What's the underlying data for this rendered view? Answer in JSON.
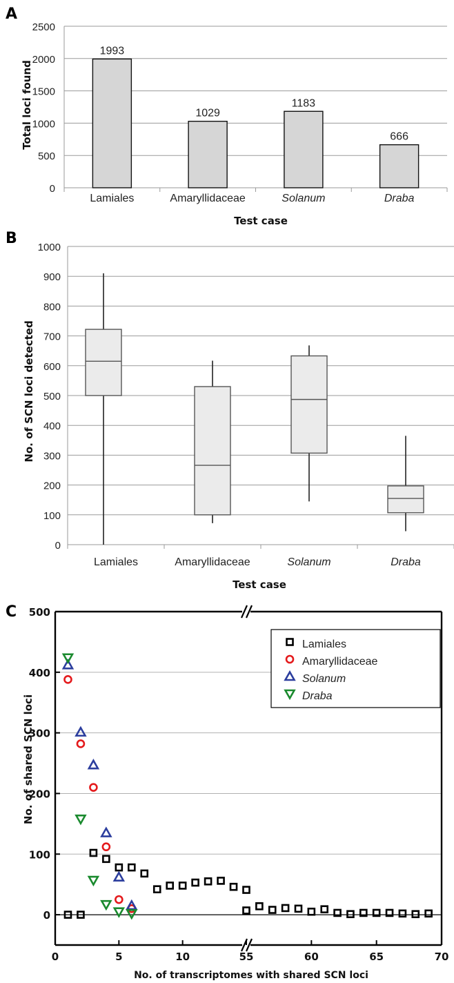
{
  "panels": {
    "a": "A",
    "b": "B",
    "c": "C"
  },
  "chart_data": [
    {
      "type": "bar",
      "ylabel": "Total loci found",
      "xlabel": "Test case",
      "categories": [
        "Lamiales",
        "Amaryllidaceae",
        "Solanum",
        "Draba"
      ],
      "italic_categories": [
        "Solanum",
        "Draba"
      ],
      "values": [
        1993,
        1029,
        1183,
        666
      ],
      "data_labels": [
        "1993",
        "1029",
        "1183",
        "666"
      ],
      "ylim": [
        0,
        2500
      ],
      "yticks": [
        "0",
        "500",
        "1000",
        "1500",
        "2000",
        "2500"
      ],
      "grid": true,
      "bar_color": "#d6d6d6"
    },
    {
      "type": "box",
      "ylabel": "No. of SCN loci detected",
      "xlabel": "Test case",
      "categories": [
        "Lamiales",
        "Amaryllidaceae",
        "Solanum",
        "Draba"
      ],
      "italic_categories": [
        "Solanum",
        "Draba"
      ],
      "boxes": [
        {
          "min": 0,
          "q1": 500,
          "median": 615,
          "q3": 722,
          "max": 910
        },
        {
          "min": 72,
          "q1": 100,
          "median": 266,
          "q3": 530,
          "max": 617
        },
        {
          "min": 145,
          "q1": 307,
          "median": 487,
          "q3": 633,
          "max": 668
        },
        {
          "min": 45,
          "q1": 107,
          "median": 155,
          "q3": 197,
          "max": 365
        }
      ],
      "ylim": [
        0,
        1000
      ],
      "yticks": [
        "0",
        "100",
        "200",
        "300",
        "400",
        "500",
        "600",
        "700",
        "800",
        "900",
        "1000"
      ],
      "grid": true,
      "box_color": "#ebebeb"
    },
    {
      "type": "scatter",
      "ylabel": "No. of shared SCN loci",
      "xlabel": "No. of transcriptomes with shared SCN loci",
      "xaxis_break": [
        15,
        55
      ],
      "xticks_left": [
        "0",
        "5",
        "10"
      ],
      "xticks_right": [
        "55",
        "60",
        "65",
        "70"
      ],
      "yticks": [
        "0",
        "100",
        "200",
        "300",
        "400",
        "500"
      ],
      "ylim": [
        -50,
        500
      ],
      "grid": true,
      "legend_position": "top-right",
      "series": [
        {
          "name": "Lamiales",
          "italic": false,
          "marker": "square",
          "color": "#000000",
          "x": [
            1,
            2,
            3,
            4,
            5,
            6,
            7,
            8,
            9,
            10,
            11,
            12,
            13,
            14,
            15,
            55,
            56,
            57,
            58,
            59,
            60,
            61,
            62,
            63,
            64,
            65,
            66,
            67,
            68,
            69
          ],
          "y": [
            0,
            0,
            102,
            92,
            78,
            78,
            68,
            42,
            48,
            48,
            53,
            55,
            56,
            46,
            41,
            7,
            14,
            8,
            11,
            10,
            5,
            9,
            3,
            1,
            3,
            3,
            3,
            2,
            1,
            2
          ]
        },
        {
          "name": "Amaryllidaceae",
          "italic": false,
          "marker": "circle",
          "color": "#e41a1c",
          "x": [
            1,
            2,
            3,
            4,
            5,
            6
          ],
          "y": [
            388,
            282,
            210,
            112,
            25,
            10
          ]
        },
        {
          "name": "Solanum",
          "italic": true,
          "marker": "triangle-up",
          "color": "#2c3e9e",
          "x": [
            1,
            2,
            3,
            4,
            5,
            6
          ],
          "y": [
            412,
            301,
            247,
            135,
            62,
            15
          ]
        },
        {
          "name": "Draba",
          "italic": true,
          "marker": "triangle-down",
          "color": "#1a8a2e",
          "x": [
            1,
            2,
            3,
            4,
            5,
            6
          ],
          "y": [
            424,
            158,
            57,
            17,
            5,
            2
          ]
        }
      ]
    }
  ]
}
